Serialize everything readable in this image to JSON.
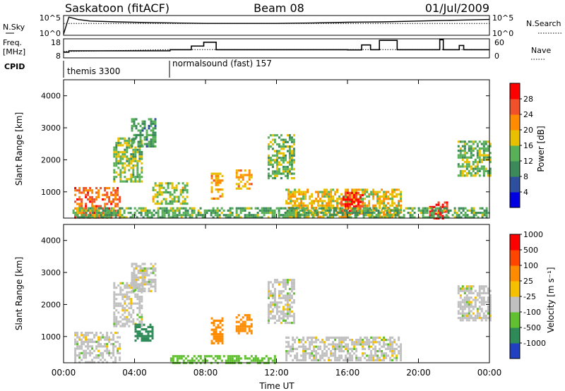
{
  "header": {
    "station": "Saskatoon (fitACF)",
    "beam": "Beam 08",
    "date": "01/Jul/2009"
  },
  "side_labels": {
    "nsky": "N.Sky",
    "freq_line1": "Freq.",
    "freq_line2": "[MHz]",
    "cpid": "CPID",
    "nsearch": "N.Search",
    "nave": "Nave"
  },
  "cpid_segments": [
    {
      "label": "themis 3300",
      "start_hour": 0
    },
    {
      "label": "normalsound (fast) 157",
      "start_hour": 6
    }
  ],
  "noise_axis": {
    "left_ticks": [
      "10^5",
      "10^0"
    ],
    "right_ticks": [
      "10^5",
      "10^0"
    ]
  },
  "freq_axis": {
    "left_ticks": [
      "18",
      "8"
    ],
    "right_ticks": [
      "60",
      "0"
    ],
    "ylim": [
      8,
      18
    ],
    "nave_lim": [
      0,
      60
    ]
  },
  "time_axis": {
    "label": "Time UT",
    "range_hours": [
      0,
      24
    ],
    "ticks": [
      "00:00",
      "04:00",
      "08:00",
      "12:00",
      "16:00",
      "20:00",
      "00:00"
    ]
  },
  "colors": {
    "power": [
      "#0000e0",
      "#2d4f9e",
      "#3c8a5a",
      "#58b058",
      "#e8c000",
      "#ff8c00",
      "#f0502a",
      "#ff0000"
    ],
    "velocity": [
      "#ff0000",
      "#ff4500",
      "#ff8c00",
      "#f5c000",
      "#c0c0c0",
      "#60c030",
      "#2e8b57",
      "#2040c0"
    ]
  },
  "chart_data": [
    {
      "type": "line",
      "panel": "noise",
      "ylabel": "N.Sky",
      "series": [
        {
          "name": "N.Sky",
          "x": [
            0,
            0.3,
            0.8,
            1.5,
            3,
            5,
            8,
            12,
            14,
            16,
            18,
            20,
            22,
            24
          ],
          "y": [
            0.3,
            4.6,
            4.0,
            3.6,
            3.4,
            3.2,
            3.0,
            3.0,
            3.1,
            3.3,
            3.4,
            3.6,
            3.8,
            4.0
          ]
        },
        {
          "name": "N.Search",
          "x": [
            0,
            6,
            12,
            18,
            24
          ],
          "y": [
            3.0,
            3.0,
            3.0,
            3.0,
            3.0
          ]
        }
      ]
    },
    {
      "type": "line",
      "panel": "frequency",
      "ylabel": "Freq. [MHz]",
      "ylim": [
        8,
        18
      ],
      "series": [
        {
          "name": "Freq.",
          "x": [
            0,
            0.3,
            6,
            7.2,
            7.9,
            8.6,
            16,
            16.8,
            17.3,
            17.8,
            18.8,
            21.2,
            21.4,
            22.3,
            22.55,
            24
          ],
          "y": [
            11,
            11.7,
            12.3,
            14.2,
            16.2,
            12.3,
            12.2,
            14.8,
            12.3,
            17.2,
            12.3,
            17.5,
            12.3,
            14.5,
            12.3,
            12.3
          ]
        },
        {
          "name": "Nave",
          "x": [
            0,
            6,
            24
          ],
          "y": [
            20,
            26,
            26
          ]
        }
      ]
    },
    {
      "type": "heatmap",
      "panel": "power",
      "ylabel": "Slant Range [km]",
      "ylim": [
        180,
        4500
      ],
      "yticks": [
        1000,
        2000,
        3000,
        4000
      ],
      "xlim": [
        0,
        24
      ],
      "colorbar": {
        "label": "Power [dB]",
        "ticks": [
          4,
          8,
          12,
          16,
          20,
          24,
          28
        ],
        "range": [
          0,
          30
        ]
      },
      "regions": [
        {
          "t": [
            0.6,
            3.2
          ],
          "r": [
            200,
            1150
          ],
          "v": 23
        },
        {
          "t": [
            2.8,
            4.4
          ],
          "r": [
            1300,
            2700
          ],
          "v": 14
        },
        {
          "t": [
            3.8,
            5.2
          ],
          "r": [
            2400,
            3300
          ],
          "v": 11
        },
        {
          "t": [
            5.0,
            7.0
          ],
          "r": [
            600,
            1300
          ],
          "v": 15
        },
        {
          "t": [
            8.3,
            9.0
          ],
          "r": [
            800,
            1600
          ],
          "v": 20
        },
        {
          "t": [
            9.7,
            10.6
          ],
          "r": [
            1100,
            1700
          ],
          "v": 19
        },
        {
          "t": [
            11.5,
            13.0
          ],
          "r": [
            1400,
            2800
          ],
          "v": 13
        },
        {
          "t": [
            12.5,
            19.0
          ],
          "r": [
            200,
            1100
          ],
          "v": 18
        },
        {
          "t": [
            15.6,
            16.8
          ],
          "r": [
            300,
            1000
          ],
          "v": 27
        },
        {
          "t": [
            20.6,
            21.6
          ],
          "r": [
            200,
            700
          ],
          "v": 27
        },
        {
          "t": [
            22.2,
            24.0
          ],
          "r": [
            1500,
            2600
          ],
          "v": 13
        },
        {
          "t": [
            0.5,
            24.0
          ],
          "r": [
            200,
            520
          ],
          "v": 12
        }
      ]
    },
    {
      "type": "heatmap",
      "panel": "velocity",
      "ylabel": "Slant Range [km]",
      "ylim": [
        180,
        4500
      ],
      "yticks": [
        1000,
        2000,
        3000,
        4000
      ],
      "xlim": [
        0,
        24
      ],
      "colorbar": {
        "label": "Velocity [m s⁻¹]",
        "ticks": [
          1000,
          500,
          100,
          25,
          -25,
          -100,
          -500,
          -1000
        ]
      },
      "regions": [
        {
          "t": [
            0.6,
            3.2
          ],
          "r": [
            200,
            1150
          ],
          "v": 0
        },
        {
          "t": [
            2.8,
            4.4
          ],
          "r": [
            1300,
            2700
          ],
          "v": 0
        },
        {
          "t": [
            3.8,
            5.2
          ],
          "r": [
            2400,
            3300
          ],
          "v": 0
        },
        {
          "t": [
            4.0,
            5.0
          ],
          "r": [
            900,
            1400
          ],
          "v": 300
        },
        {
          "t": [
            8.3,
            9.0
          ],
          "r": [
            800,
            1600
          ],
          "v": -300
        },
        {
          "t": [
            9.7,
            10.6
          ],
          "r": [
            1100,
            1700
          ],
          "v": -300
        },
        {
          "t": [
            11.5,
            13.0
          ],
          "r": [
            1400,
            2800
          ],
          "v": 0
        },
        {
          "t": [
            12.5,
            19.0
          ],
          "r": [
            250,
            1000
          ],
          "v": 0
        },
        {
          "t": [
            22.2,
            24.0
          ],
          "r": [
            1500,
            2600
          ],
          "v": 0
        },
        {
          "t": [
            6.0,
            12.0
          ],
          "r": [
            200,
            420
          ],
          "v": 60
        }
      ]
    }
  ]
}
